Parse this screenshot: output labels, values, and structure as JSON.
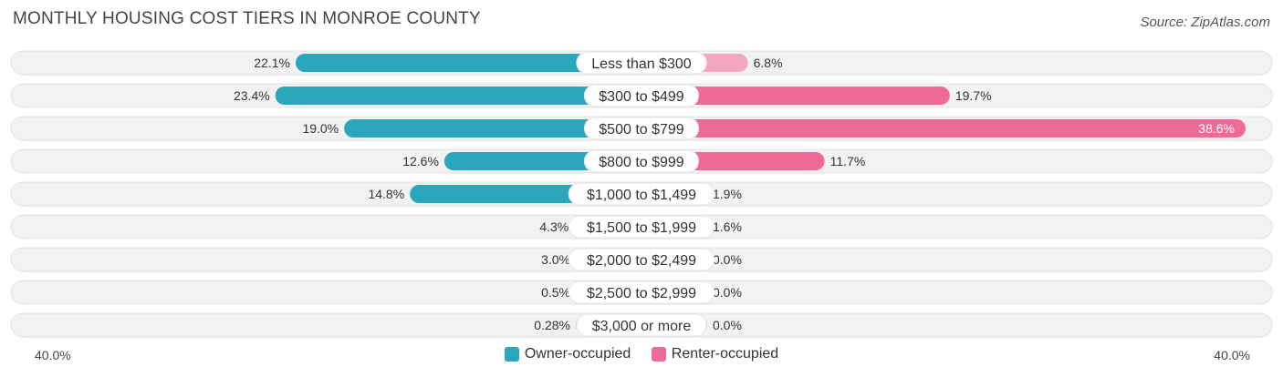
{
  "header": {
    "title": "MONTHLY HOUSING COST TIERS IN MONROE COUNTY",
    "source": "Source: ZipAtlas.com"
  },
  "colors": {
    "owner_strong": "#2aa7ba",
    "owner_light": "#7cc9d5",
    "renter_strong": "#f06a96",
    "renter_light": "#f5a6c1",
    "track": "#f2f2f2"
  },
  "chart_data": {
    "type": "bar",
    "orientation": "diverging-horizontal",
    "categories": [
      "Less than $300",
      "$300 to $499",
      "$500 to $799",
      "$800 to $999",
      "$1,000 to $1,499",
      "$1,500 to $1,999",
      "$2,000 to $2,499",
      "$2,500 to $2,999",
      "$3,000 or more"
    ],
    "series": [
      {
        "name": "Owner-occupied",
        "values": [
          22.1,
          23.4,
          19.0,
          12.6,
          14.8,
          4.3,
          3.0,
          0.5,
          0.28
        ],
        "labels": [
          "22.1%",
          "23.4%",
          "19.0%",
          "12.6%",
          "14.8%",
          "4.3%",
          "3.0%",
          "0.5%",
          "0.28%"
        ]
      },
      {
        "name": "Renter-occupied",
        "values": [
          6.8,
          19.7,
          38.6,
          11.7,
          1.9,
          1.6,
          0.0,
          0.0,
          0.0
        ],
        "labels": [
          "6.8%",
          "19.7%",
          "38.6%",
          "11.7%",
          "1.9%",
          "1.6%",
          "0.0%",
          "0.0%",
          "0.0%"
        ]
      }
    ],
    "axis": {
      "left_label": "40.0%",
      "right_label": "40.0%",
      "max": 40.0
    },
    "legend_position": "bottom-center"
  }
}
